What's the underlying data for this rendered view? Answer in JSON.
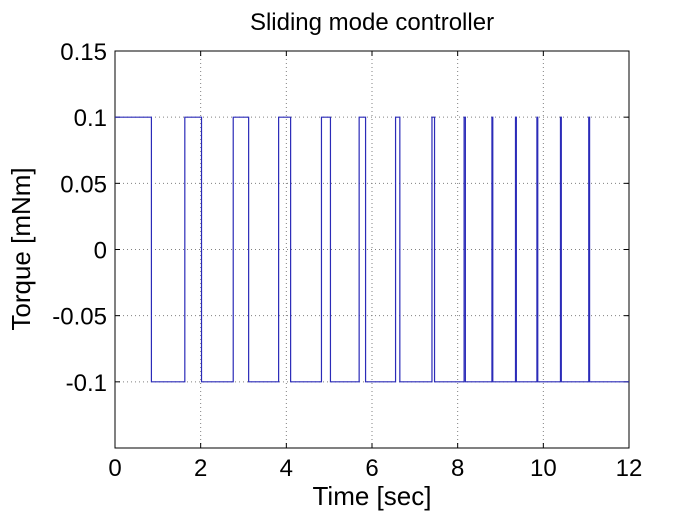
{
  "chart_data": {
    "type": "line",
    "title": "Sliding mode controller",
    "xlabel": "Time [sec]",
    "ylabel": "Torque [mNm]",
    "xlim": [
      0,
      12
    ],
    "ylim": [
      -0.15,
      0.15
    ],
    "xticks": [
      0,
      2,
      4,
      6,
      8,
      10,
      12
    ],
    "xtick_labels": [
      "0",
      "2",
      "4",
      "6",
      "8",
      "10",
      "12"
    ],
    "yticks": [
      0.15,
      0.1,
      0.05,
      0,
      -0.05,
      -0.1
    ],
    "ytick_labels": [
      "0.15",
      "0.1",
      "0.05",
      "0",
      "-0.05",
      "-0.1"
    ],
    "grid": true,
    "line_color": "#2b2bb8",
    "series": [
      {
        "x": [
          0,
          0.85,
          0.85,
          1.63,
          1.63,
          2.02,
          2.02,
          2.76,
          2.76,
          3.12,
          3.12,
          3.82,
          3.82,
          4.1,
          4.1,
          4.82,
          4.82,
          5.03,
          5.03,
          5.7,
          5.7,
          5.85,
          5.85,
          6.55,
          6.55,
          6.65,
          6.65,
          7.4,
          7.4,
          7.46,
          7.46,
          8.15,
          8.15,
          8.18,
          8.18,
          8.8,
          8.8,
          8.82,
          8.82,
          9.35,
          9.35,
          9.37,
          9.37,
          9.85,
          9.85,
          9.87,
          9.87,
          10.4,
          10.4,
          10.42,
          10.42,
          11.06,
          11.06,
          11.08,
          11.08,
          12
        ],
        "y": [
          0.1,
          0.1,
          -0.1,
          -0.1,
          0.1,
          0.1,
          -0.1,
          -0.1,
          0.1,
          0.1,
          -0.1,
          -0.1,
          0.1,
          0.1,
          -0.1,
          -0.1,
          0.1,
          0.1,
          -0.1,
          -0.1,
          0.1,
          0.1,
          -0.1,
          -0.1,
          0.1,
          0.1,
          -0.1,
          -0.1,
          0.1,
          0.1,
          -0.1,
          -0.1,
          0.1,
          0.1,
          -0.1,
          -0.1,
          0.1,
          0.1,
          -0.1,
          -0.1,
          0.1,
          0.1,
          -0.1,
          -0.1,
          0.1,
          0.1,
          -0.1,
          -0.1,
          0.1,
          0.1,
          -0.1,
          -0.1,
          0.1,
          0.1,
          -0.1,
          -0.1
        ]
      }
    ]
  }
}
